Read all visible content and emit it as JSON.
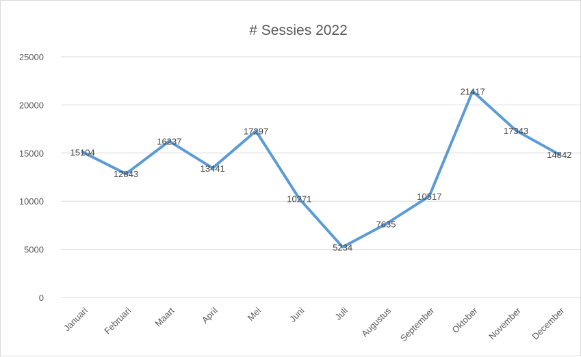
{
  "chart_data": {
    "type": "line",
    "title": "# Sessies 2022",
    "xlabel": "",
    "ylabel": "",
    "categories": [
      "Januari",
      "Februari",
      "Maart",
      "April",
      "Mei",
      "Juni",
      "Juli",
      "Augustus",
      "September",
      "Oktober",
      "November",
      "December"
    ],
    "series": [
      {
        "values": [
          15104,
          12843,
          16237,
          13441,
          17297,
          10271,
          5234,
          7635,
          10517,
          21417,
          17343,
          14842
        ],
        "color": "#5b9bd5"
      }
    ],
    "ylim": [
      0,
      25000
    ],
    "yticks": [
      "0",
      "5000",
      "10000",
      "15000",
      "20000",
      "25000"
    ],
    "data_labels": [
      "15104",
      "12843",
      "16237",
      "13441",
      "17297",
      "10271",
      "5234",
      "7635",
      "10517",
      "21417",
      "17343",
      "14842"
    ],
    "grid": "horizontal",
    "legend": "none"
  }
}
